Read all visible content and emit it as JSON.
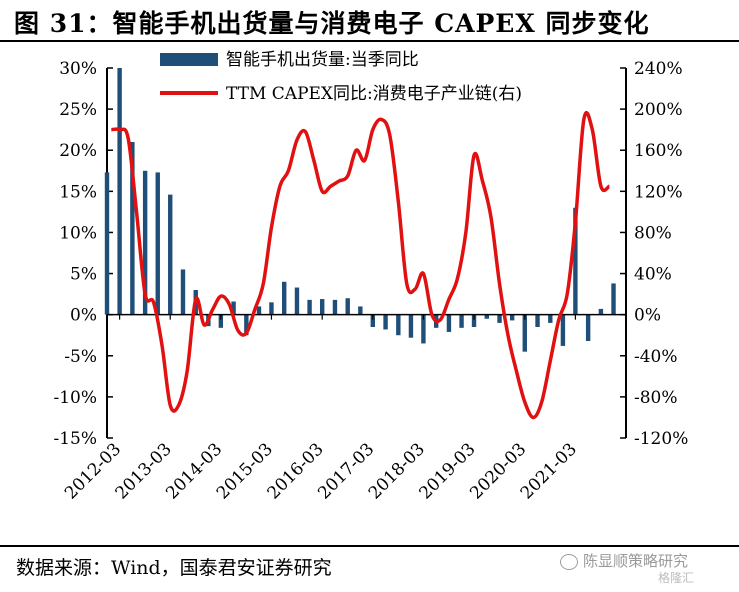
{
  "figure": {
    "title": "图 31：智能手机出货量与消费电子 CAPEX 同步变化",
    "source": "数据来源：Wind，国泰君安证券研究",
    "watermark": "陈显顺策略研究",
    "watermark2": "格隆汇"
  },
  "colors": {
    "bar": "#1f4e79",
    "line": "#e11111",
    "axis": "#000000"
  },
  "chart_data": {
    "type": "bar+line",
    "x_tick_labels": [
      "2012-03",
      "2013-03",
      "2014-03",
      "2015-03",
      "2016-03",
      "2017-03",
      "2018-03",
      "2019-03",
      "2020-03",
      "2021-03"
    ],
    "left_axis": {
      "ylim": [
        -15,
        30
      ],
      "ticks": [
        -15,
        -10,
        -5,
        0,
        5,
        10,
        15,
        20,
        25,
        30
      ],
      "tick_labels": [
        "-15%",
        "-10%",
        "-5%",
        "0%",
        "5%",
        "10%",
        "15%",
        "20%",
        "25%",
        "30%"
      ]
    },
    "right_axis": {
      "ylim": [
        -120,
        240
      ],
      "ticks": [
        -120,
        -80,
        -40,
        0,
        40,
        80,
        120,
        160,
        200,
        240
      ],
      "tick_labels": [
        "-120%",
        "-80%",
        "-40%",
        "0%",
        "40%",
        "80%",
        "120%",
        "160%",
        "200%",
        "240%"
      ]
    },
    "legend_position": "top",
    "series": [
      {
        "name": "智能手机出货量:当季同比",
        "kind": "bar",
        "axis": "left",
        "x": [
          "2011-12",
          "2012-03",
          "2012-06",
          "2012-09",
          "2012-12",
          "2013-03",
          "2013-06",
          "2013-09",
          "2013-12",
          "2014-03",
          "2014-06",
          "2014-09",
          "2014-12",
          "2015-03",
          "2015-06",
          "2015-09",
          "2015-12",
          "2016-03",
          "2016-06",
          "2016-09",
          "2016-12",
          "2017-03",
          "2017-06",
          "2017-09",
          "2017-12",
          "2018-03",
          "2018-06",
          "2018-09",
          "2018-12",
          "2019-03",
          "2019-06",
          "2019-09",
          "2019-12",
          "2020-03",
          "2020-06",
          "2020-09",
          "2020-12",
          "2021-03",
          "2021-06",
          "2021-09",
          "2021-12"
        ],
        "values": [
          17.3,
          30,
          21,
          17.5,
          17.3,
          14.6,
          5.5,
          3,
          -1.4,
          -1.6,
          1.6,
          -2.5,
          1,
          1.5,
          4,
          3.3,
          1.8,
          1.9,
          1.8,
          2,
          1,
          -1.5,
          -1.8,
          -2.5,
          -2.8,
          -3.5,
          -1.6,
          -2.1,
          -1.6,
          -1.5,
          -0.5,
          -1,
          -0.7,
          -4.5,
          -1.5,
          -1,
          -3.8,
          13,
          -3.2,
          0.7,
          3.8
        ]
      },
      {
        "name": "TTM CAPEX同比:消费电子产业链(右)",
        "kind": "line",
        "axis": "right",
        "x": [
          "2012-01",
          "2012-03",
          "2012-05",
          "2012-07",
          "2012-09",
          "2012-11",
          "2013-01",
          "2013-03",
          "2013-05",
          "2013-07",
          "2013-09",
          "2013-11",
          "2014-01",
          "2014-03",
          "2014-05",
          "2014-07",
          "2014-09",
          "2014-11",
          "2015-01",
          "2015-03",
          "2015-05",
          "2015-07",
          "2015-09",
          "2015-11",
          "2016-01",
          "2016-03",
          "2016-05",
          "2016-07",
          "2016-09",
          "2016-11",
          "2017-01",
          "2017-03",
          "2017-05",
          "2017-07",
          "2017-09",
          "2017-11",
          "2018-01",
          "2018-03",
          "2018-05",
          "2018-07",
          "2018-09",
          "2018-11",
          "2019-01",
          "2019-03",
          "2019-05",
          "2019-07",
          "2019-09",
          "2019-11",
          "2020-01",
          "2020-03",
          "2020-05",
          "2020-07",
          "2020-09",
          "2020-11",
          "2021-01",
          "2021-03",
          "2021-05",
          "2021-07",
          "2021-09",
          "2021-11"
        ],
        "values": [
          180,
          180,
          172,
          100,
          20,
          12,
          -30,
          -88,
          -88,
          -55,
          15,
          -10,
          5,
          18,
          10,
          -15,
          -18,
          5,
          30,
          85,
          125,
          140,
          170,
          178,
          150,
          120,
          125,
          130,
          135,
          160,
          150,
          180,
          190,
          175,
          110,
          30,
          25,
          40,
          0,
          -5,
          15,
          35,
          80,
          155,
          130,
          95,
          30,
          -20,
          -55,
          -85,
          -100,
          -85,
          -45,
          -5,
          20,
          90,
          190,
          180,
          125,
          125
        ]
      }
    ]
  }
}
